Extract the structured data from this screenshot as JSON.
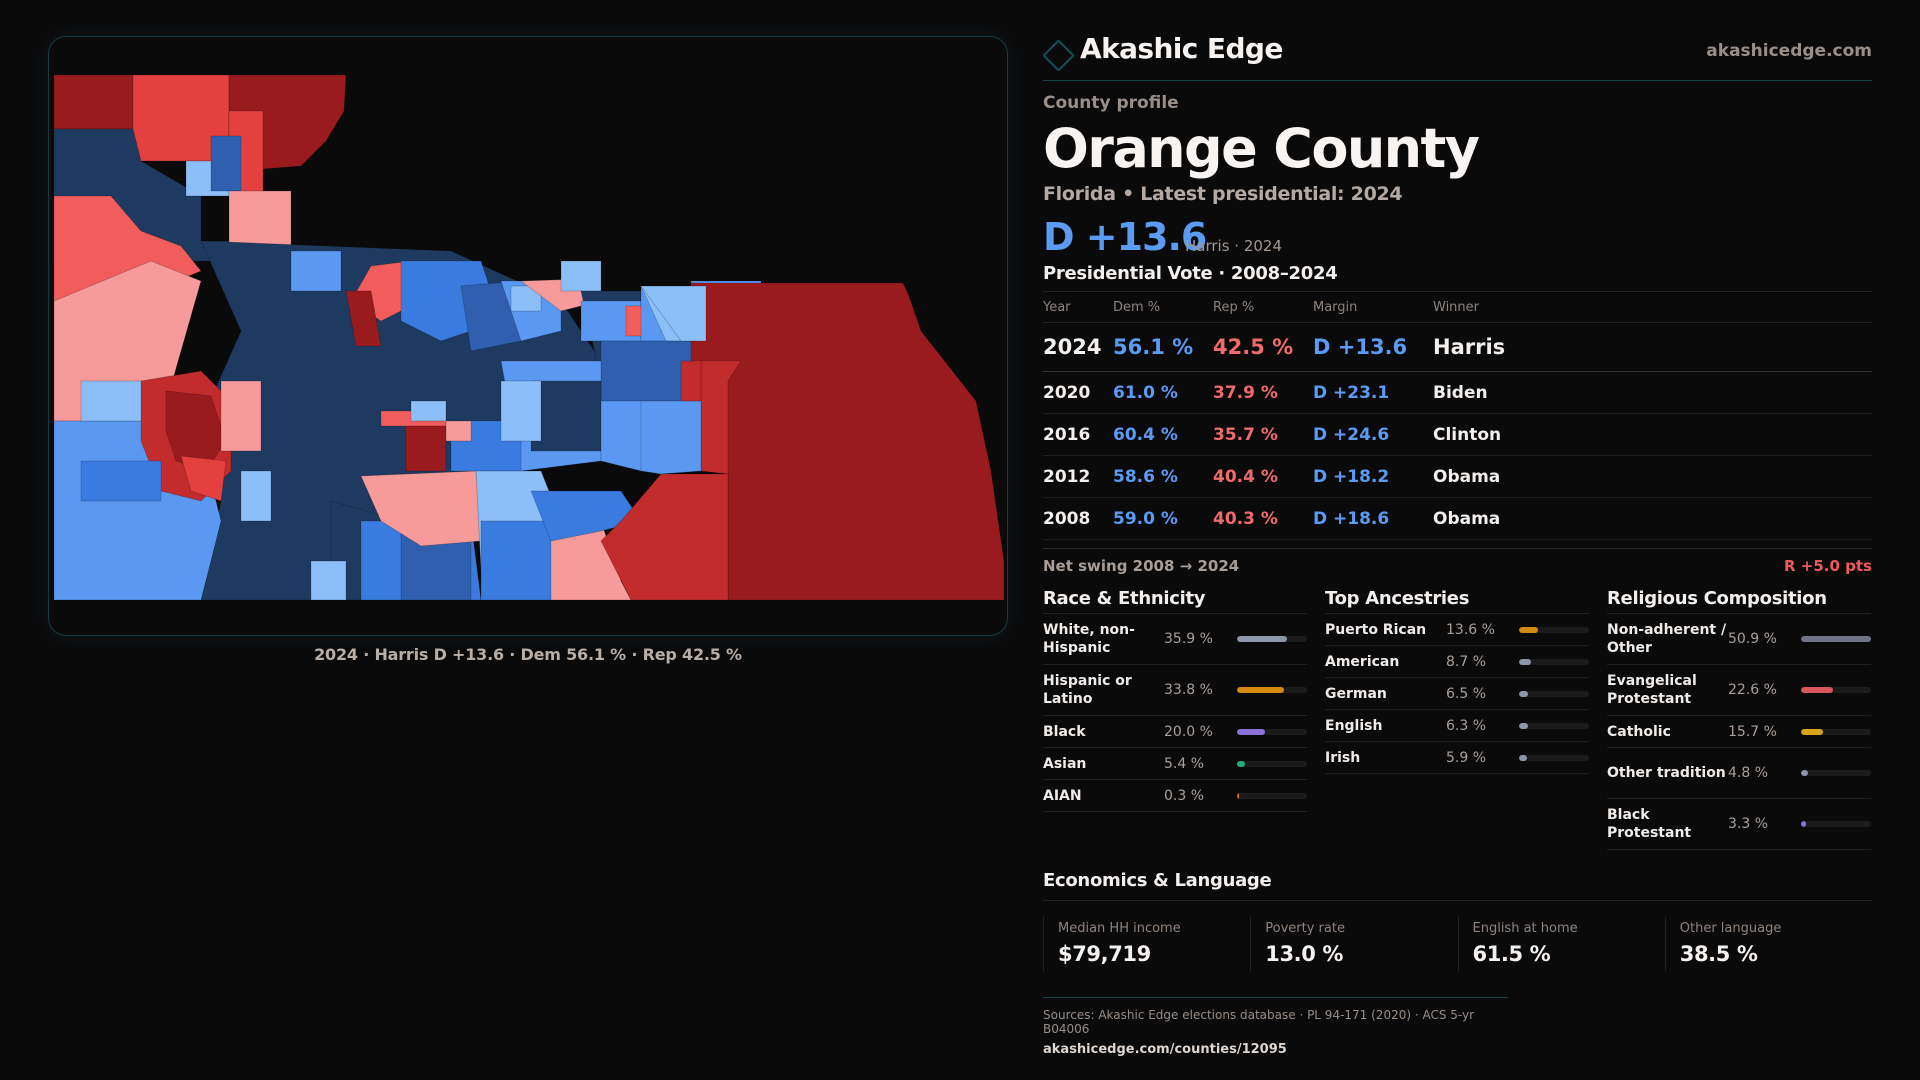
{
  "brand": {
    "name": "Akashic Edge",
    "url": "akashicedge.com",
    "logo_icon": "diamond-outline-icon"
  },
  "profile": {
    "eyebrow": "County profile",
    "title": "Orange County",
    "subtitle": "Florida • Latest presidential: 2024",
    "headline_margin": "D +13.6",
    "headline_who": "Harris · 2024"
  },
  "colors": {
    "dem": "#5b9bf3",
    "rep": "#f26b6b",
    "accent": "#14434a"
  },
  "votes": {
    "title": "Presidential Vote · 2008–2024",
    "headers": [
      "Year",
      "Dem %",
      "Rep %",
      "Margin",
      "Winner"
    ],
    "rows": [
      {
        "year": "2024",
        "dem": "56.1 %",
        "rep": "42.5 %",
        "margin": "D +13.6",
        "winner": "Harris"
      },
      {
        "year": "2020",
        "dem": "61.0 %",
        "rep": "37.9 %",
        "margin": "D +23.1",
        "winner": "Biden"
      },
      {
        "year": "2016",
        "dem": "60.4 %",
        "rep": "35.7 %",
        "margin": "D +24.6",
        "winner": "Clinton"
      },
      {
        "year": "2012",
        "dem": "58.6 %",
        "rep": "40.4 %",
        "margin": "D +18.2",
        "winner": "Obama"
      },
      {
        "year": "2008",
        "dem": "59.0 %",
        "rep": "40.3 %",
        "margin": "D +18.6",
        "winner": "Obama"
      }
    ],
    "swing_label": "Net swing 2008 → 2024",
    "swing_value": "R +5.0 pts"
  },
  "race": {
    "title": "Race & Ethnicity",
    "items": [
      {
        "label": "White, non-Hispanic",
        "value": "35.9 %",
        "pct": 35.9,
        "color": "#8b96a6"
      },
      {
        "label": "Hispanic or Latino",
        "value": "33.8 %",
        "pct": 33.8,
        "color": "#d48a12"
      },
      {
        "label": "Black",
        "value": "20.0 %",
        "pct": 20.0,
        "color": "#8c72d8"
      },
      {
        "label": "Asian",
        "value": "5.4 %",
        "pct": 5.4,
        "color": "#1fae7e"
      },
      {
        "label": "AIAN",
        "value": "0.3 %",
        "pct": 0.3,
        "color": "#d0701a"
      }
    ]
  },
  "ancestry": {
    "title": "Top Ancestries",
    "items": [
      {
        "label": "Puerto Rican",
        "value": "13.6 %",
        "pct": 13.6,
        "color": "#d48a12"
      },
      {
        "label": "American",
        "value": "8.7 %",
        "pct": 8.7,
        "color": "#8b96a6"
      },
      {
        "label": "German",
        "value": "6.5 %",
        "pct": 6.5,
        "color": "#8b96a6"
      },
      {
        "label": "English",
        "value": "6.3 %",
        "pct": 6.3,
        "color": "#8b96a6"
      },
      {
        "label": "Irish",
        "value": "5.9 %",
        "pct": 5.9,
        "color": "#8b96a6"
      }
    ]
  },
  "religion": {
    "title": "Religious Composition",
    "items": [
      {
        "label": "Non-adherent / Other",
        "value": "50.9 %",
        "pct": 50.9,
        "color": "#6f7585"
      },
      {
        "label": "Evangelical Protestant",
        "value": "22.6 %",
        "pct": 22.6,
        "color": "#d9565e"
      },
      {
        "label": "Catholic",
        "value": "15.7 %",
        "pct": 15.7,
        "color": "#d7a41a"
      },
      {
        "label": "Other tradition",
        "value": "4.8 %",
        "pct": 4.8,
        "color": "#8b96a6"
      },
      {
        "label": "Black Protestant",
        "value": "3.3 %",
        "pct": 3.3,
        "color": "#8c72d8"
      }
    ]
  },
  "economics": {
    "title": "Economics & Language",
    "cells": [
      {
        "label": "Median HH income",
        "value": "$79,719"
      },
      {
        "label": "Poverty rate",
        "value": "13.0 %"
      },
      {
        "label": "English at home",
        "value": "61.5 %"
      },
      {
        "label": "Other language",
        "value": "38.5 %"
      }
    ]
  },
  "footer": {
    "sources": "Sources: Akashic Edge elections database · PL 94-171 (2020) · ACS 5-yr B04006",
    "url": "akashicedge.com/counties/12095"
  },
  "map": {
    "caption": "2024 · Harris D +13.6 · Dem 56.1 % · Rep 42.5 %",
    "palette": {
      "dem_strong": "#1f3a60",
      "dem_mid": "#2f5fae",
      "dem": "#3a7be0",
      "dem_lean": "#5a98f2",
      "dem_light": "#8cbef8",
      "rep_light": "#f79a9a",
      "rep_lean": "#f15c5c",
      "rep": "#e44040",
      "rep_mid": "#c22c2c",
      "rep_strong": "#9a1b1e"
    }
  }
}
